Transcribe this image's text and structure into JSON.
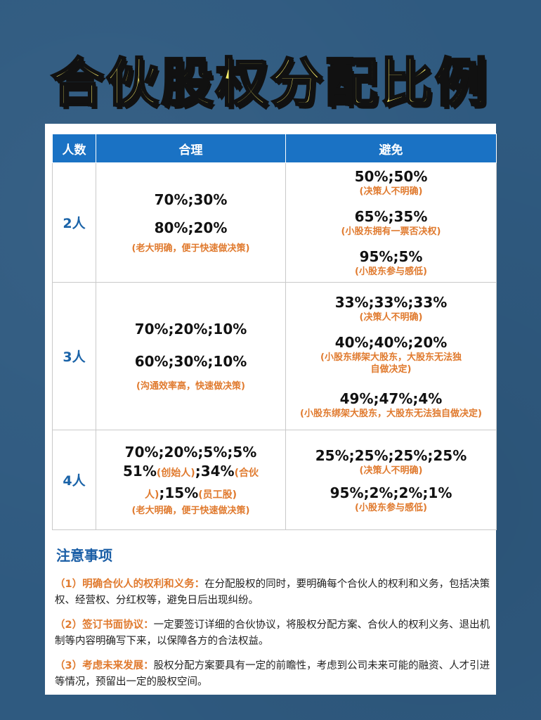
{
  "title": "合伙股权分配比例",
  "table": {
    "headers": [
      "人数",
      "合理",
      "避免"
    ],
    "rows": [
      {
        "count": "2人",
        "reasonable": [
          "70%;30%",
          "80%;20%"
        ],
        "reasonable_note": "(老大明确，便于快速做决策)",
        "avoid": [
          {
            "ratio": "50%;50%",
            "note": "(决策人不明确)"
          },
          {
            "ratio": "65%;35%",
            "note": "(小股东拥有一票否决权)"
          },
          {
            "ratio": "95%;5%",
            "note": "(小股东参与感低)"
          }
        ]
      },
      {
        "count": "3人",
        "reasonable": [
          "70%;20%;10%",
          "60%;30%;10%"
        ],
        "reasonable_note": "(沟通效率高，快速做决策)",
        "avoid": [
          {
            "ratio": "33%;33%;33%",
            "note": "(决策人不明确)"
          },
          {
            "ratio": "40%;40%;20%",
            "note": "(小股东绑架大股东，大股东无法独自做决定)"
          },
          {
            "ratio": "49%;47%;4%",
            "note": "(小股东绑架大股东，大股东无法独自做决定)"
          }
        ]
      },
      {
        "count": "4人",
        "reasonable_line1": "70%;20%;5%;5%",
        "reasonable_line2": {
          "v1": "51%",
          "n1": "(创始人)",
          "sep1": ";",
          "v2": "34%",
          "n2": "(合伙人)",
          "sep2": ";",
          "v3": "15%",
          "n3": "(员工股)"
        },
        "reasonable_note": "(老大明确，便于快速做决策)",
        "avoid": [
          {
            "ratio": "25%;25%;25%;25%",
            "note": "(决策人不明确)"
          },
          {
            "ratio": "95%;2%;2%;1%",
            "note": "(小股东参与感低)"
          }
        ]
      }
    ]
  },
  "notice": {
    "heading": "注意事项",
    "items": [
      {
        "label": "（1）明确合伙人的权利和义务：",
        "text": "在分配股权的同时，要明确每个合伙人的权利和义务，包括决策权、经营权、分红权等，避免日后出现纠纷。"
      },
      {
        "label": "（2）签订书面协议：",
        "text": "一定要签订详细的合伙协议，将股权分配方案、合伙人的权利义务、退出机制等内容明确写下来，以保障各方的合法权益。"
      },
      {
        "label": "（3）考虑未来发展：",
        "text": "股权分配方案要具有一定的前瞻性，考虑到公司未来可能的融资、人才引进等情况，预留出一定的股权空间。"
      }
    ]
  },
  "colors": {
    "background": "#2f5a80",
    "title": "#fff36a",
    "header": "#1a72c4",
    "note": "#e07a2e",
    "count": "#1a63a8"
  }
}
